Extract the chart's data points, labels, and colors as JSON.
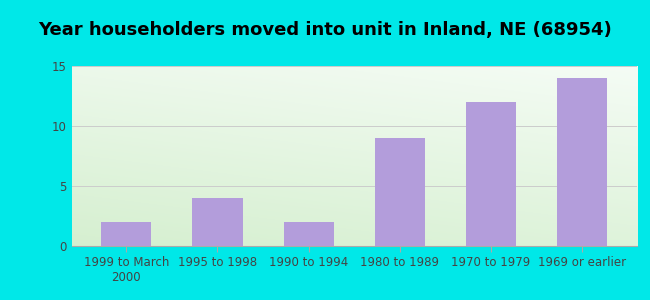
{
  "title": "Year householders moved into unit in Inland, NE (68954)",
  "categories": [
    "1999 to March\n2000",
    "1995 to 1998",
    "1990 to 1994",
    "1980 to 1989",
    "1970 to 1979",
    "1969 or earlier"
  ],
  "values": [
    2,
    4,
    2,
    9,
    12,
    14
  ],
  "bar_color": "#b39ddb",
  "ylim": [
    0,
    15
  ],
  "yticks": [
    0,
    5,
    10,
    15
  ],
  "outer_bg": "#00e8e8",
  "grid_color": "#cccccc",
  "title_fontsize": 13,
  "tick_fontsize": 8.5,
  "bar_width": 0.55,
  "bg_colors_x": [
    "#b2dfcc",
    "#e8f5e9",
    "#f0faf0"
  ],
  "bg_colors_y_bottom": "#c8eac0",
  "bg_colors_y_top": "#f0faf0"
}
